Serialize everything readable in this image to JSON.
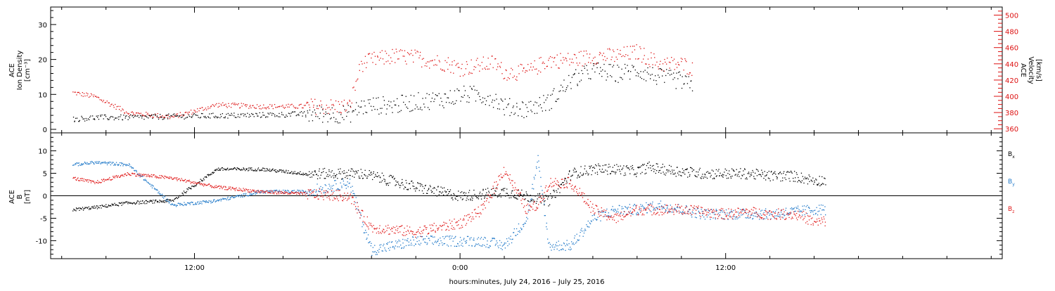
{
  "chart_data": [
    {
      "type": "scatter",
      "ylabel_left": [
        "ACE",
        "Ion Density",
        "[cm⁻³]"
      ],
      "ylabel_right": [
        "ACE",
        "Velocity",
        "[km/s]"
      ],
      "ylim_left": [
        -1,
        35
      ],
      "ylim_right": [
        355,
        510
      ],
      "yticks_left": [
        0,
        10,
        20,
        30
      ],
      "yticks_right": [
        360,
        380,
        400,
        420,
        440,
        460,
        480,
        500
      ],
      "colors": {
        "density": "#000000",
        "velocity": "#dd1111"
      },
      "series": [
        {
          "key": "density",
          "axis": "left",
          "hours": [
            -17.5,
            -16.5,
            -15,
            -13,
            -11,
            -9,
            -7,
            -5,
            -4.5,
            -4,
            -3,
            -2,
            -0.5,
            0,
            0.7,
            1.2,
            1.5,
            2,
            3,
            4,
            5,
            6,
            7,
            8,
            9,
            10,
            10.5
          ],
          "values": [
            3,
            3.5,
            3.5,
            3.8,
            4,
            4.2,
            4.5,
            4.5,
            6.5,
            7,
            7,
            8,
            9,
            10,
            10,
            9.5,
            9,
            6.5,
            6,
            8,
            14,
            17,
            16,
            17,
            15,
            14,
            12
          ]
        },
        {
          "key": "velocity",
          "axis": "right",
          "hours": [
            -17.5,
            -16.5,
            -15,
            -13,
            -11,
            -9,
            -7,
            -5,
            -4.5,
            -4,
            -3,
            -2,
            -0.5,
            0,
            0.7,
            1.2,
            1.5,
            2,
            3,
            4,
            5,
            6,
            7,
            8,
            9,
            10,
            10.5
          ],
          "values": [
            405,
            400,
            380,
            375,
            390,
            388,
            388,
            388,
            440,
            445,
            450,
            448,
            440,
            435,
            438,
            440,
            442,
            430,
            430,
            445,
            445,
            450,
            450,
            455,
            440,
            440,
            435
          ]
        }
      ]
    },
    {
      "type": "scatter",
      "ylabel": [
        "ACE",
        "B",
        "[nT]"
      ],
      "ylim": [
        -14,
        14
      ],
      "yticks": [
        -10,
        -5,
        0,
        5,
        10
      ],
      "zero_line": true,
      "legend_position": "right",
      "series": [
        {
          "name": "Bx",
          "color": "#000000",
          "hours": [
            -17.5,
            -16.5,
            -15,
            -13,
            -11,
            -9,
            -7,
            -5,
            -4.5,
            -4,
            -2,
            0,
            2,
            4,
            5,
            6,
            7,
            8,
            8.5,
            9,
            10,
            11,
            12,
            13,
            14,
            15,
            15.5,
            16,
            16.5
          ],
          "values": [
            -3,
            -2.5,
            -1.5,
            -1,
            6,
            6,
            5,
            5,
            5,
            4.5,
            2,
            0,
            1,
            -1,
            5,
            6,
            6,
            5.5,
            6.5,
            6,
            5.5,
            5,
            5,
            5,
            4.5,
            4.5,
            4,
            3.5,
            3.5
          ]
        },
        {
          "name": "By",
          "color": "#1f78c8",
          "hours": [
            -17.5,
            -16.5,
            -15,
            -13,
            -11,
            -9,
            -7,
            -6,
            -5,
            -4.5,
            -4,
            -2,
            0,
            1,
            2,
            3,
            3.5,
            4,
            5,
            6,
            7,
            8,
            9,
            10,
            11,
            12,
            13,
            14,
            15,
            16,
            16.5
          ],
          "values": [
            7,
            7.5,
            7,
            -2,
            -1,
            1,
            1,
            2,
            3,
            -5,
            -12,
            -10,
            -10,
            -10,
            -11,
            -5,
            8,
            -11,
            -11,
            -5,
            -3,
            -3,
            -2,
            -3,
            -4,
            -4,
            -4,
            -4,
            -3.5,
            -3,
            -3
          ]
        },
        {
          "name": "Bz",
          "color": "#e01a1a",
          "hours": [
            -17.5,
            -16.5,
            -15,
            -13,
            -11,
            -9,
            -7,
            -5,
            -4.5,
            -4,
            -2,
            0,
            1,
            2,
            3,
            3.5,
            4,
            5,
            6,
            7,
            8,
            9,
            10,
            11,
            12,
            13,
            14,
            15,
            15.5,
            16,
            16.5
          ],
          "values": [
            4,
            3,
            5,
            4,
            2,
            1,
            0.5,
            0,
            -4,
            -7,
            -8,
            -6,
            -3,
            6,
            -3,
            -2,
            3,
            3,
            -3,
            -5,
            -3,
            -3,
            -3,
            -3.5,
            -4,
            -3.5,
            -4,
            -4,
            -4.5,
            -6,
            -5.5
          ]
        }
      ]
    }
  ],
  "xaxis": {
    "xlim_hours": [
      -18.5,
      24.5
    ],
    "tick_labels": [
      {
        "hour": -12,
        "label": "12:00"
      },
      {
        "hour": 0,
        "label": "0:00"
      },
      {
        "hour": 12,
        "label": "12:00"
      }
    ],
    "xlabel": "hours:minutes, July 24, 2016 – July 25, 2016"
  }
}
